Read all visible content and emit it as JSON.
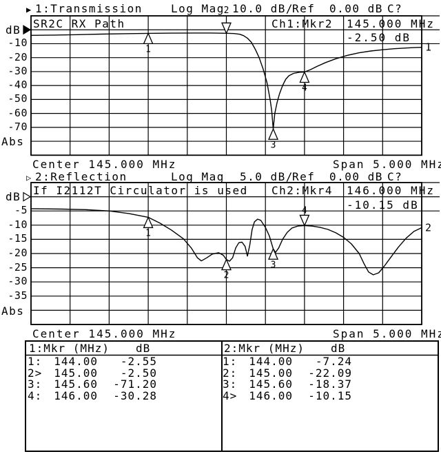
{
  "colors": {
    "fg": "#000000",
    "bg": "#ffffff"
  },
  "chart_data": [
    {
      "type": "line",
      "channel_arrow": "▶",
      "title": "1:Transmission",
      "format": "Log Mag",
      "scale": "10.0 dB/",
      "ref_label": "Ref",
      "ref_value": "0.00 dB",
      "cal_status": "C?",
      "trace_title": "SR2C RX Path",
      "marker_readout_label": "Ch1:Mkr2",
      "marker_readout_freq": "145.000 MHz",
      "marker_readout_value": "-2.50 dB",
      "y_axis_unit": "dB",
      "y_ticks": [
        "-10",
        "-20",
        "-30",
        "-40",
        "-50",
        "-60",
        "-70"
      ],
      "y_bottom_label": "Abs",
      "center_label": "Center 145.000 MHz",
      "span_label": "Span 5.000 MHz",
      "trace_number": "1",
      "ref_pointer_style": "filled",
      "x_range_mhz": [
        142.5,
        147.5
      ],
      "ref_db": 0,
      "db_per_div": 10,
      "grid_divisions": [
        10,
        10
      ],
      "trace_mhz": [
        142.5,
        142.8,
        143.1,
        143.4,
        143.7,
        144.0,
        144.3,
        144.6,
        144.8,
        145.0,
        145.1,
        145.17,
        145.22,
        145.27,
        145.32,
        145.37,
        145.42,
        145.47,
        145.52,
        145.56,
        145.58,
        145.6,
        145.62,
        145.65,
        145.68,
        145.72,
        145.76,
        145.8,
        145.86,
        145.93,
        146.0,
        146.08,
        146.16,
        146.27,
        146.4,
        146.55,
        146.7,
        146.85,
        147.0,
        147.15,
        147.3,
        147.4,
        147.5
      ],
      "trace_db": [
        -4.0,
        -3.8,
        -3.5,
        -3.1,
        -2.8,
        -2.55,
        -2.4,
        -2.3,
        -2.3,
        -2.5,
        -2.7,
        -3.2,
        -4.2,
        -6.0,
        -9.0,
        -14.0,
        -20.0,
        -28.0,
        -38.0,
        -50.0,
        -58.0,
        -71.2,
        -60.0,
        -52.0,
        -46.0,
        -40.0,
        -35.5,
        -33.0,
        -31.3,
        -30.5,
        -30.28,
        -28.5,
        -26.3,
        -23.5,
        -20.8,
        -18.3,
        -16.5,
        -15.2,
        -14.3,
        -13.6,
        -13.1,
        -12.8,
        -12.6
      ],
      "markers": [
        {
          "label": "1",
          "mhz": 144.0,
          "db": -2.55,
          "active": false
        },
        {
          "label": "2",
          "mhz": 145.0,
          "db": -2.5,
          "active": true
        },
        {
          "label": "3",
          "mhz": 145.6,
          "db": -71.2,
          "active": false
        },
        {
          "label": "4",
          "mhz": 146.0,
          "db": -30.28,
          "active": false
        }
      ]
    },
    {
      "type": "line",
      "channel_arrow": "▷",
      "title": "2:Reflection",
      "format": "Log Mag",
      "scale": "5.0 dB/",
      "ref_label": "Ref",
      "ref_value": "0.00 dB",
      "cal_status": "C?",
      "trace_title": "If I2112T Circulator is used",
      "marker_readout_label": "Ch2:Mkr4",
      "marker_readout_freq": "146.000 MHz",
      "marker_readout_value": "-10.15 dB",
      "y_axis_unit": "dB",
      "y_ticks": [
        "-5",
        "-10",
        "-15",
        "-20",
        "-25",
        "-30",
        "-35"
      ],
      "y_bottom_label": "Abs",
      "center_label": "Center 145.000 MHz",
      "span_label": "Span 5.000 MHz",
      "trace_number": "2",
      "ref_pointer_style": "hollow",
      "x_range_mhz": [
        142.5,
        147.5
      ],
      "ref_db": 0,
      "db_per_div": 5,
      "grid_divisions": [
        10,
        10
      ],
      "trace_mhz": [
        142.5,
        142.9,
        143.2,
        143.5,
        143.75,
        144.0,
        144.15,
        144.3,
        144.45,
        144.55,
        144.63,
        144.68,
        144.75,
        144.82,
        144.9,
        144.96,
        145.0,
        145.04,
        145.08,
        145.12,
        145.16,
        145.2,
        145.24,
        145.27,
        145.3,
        145.33,
        145.36,
        145.4,
        145.44,
        145.5,
        145.55,
        145.6,
        145.63,
        145.67,
        145.72,
        145.78,
        145.84,
        145.92,
        146.0,
        146.1,
        146.2,
        146.3,
        146.4,
        146.5,
        146.6,
        146.7,
        146.76,
        146.82,
        146.88,
        146.95,
        147.02,
        147.1,
        147.2,
        147.3,
        147.4,
        147.5
      ],
      "trace_db": [
        -4.2,
        -4.35,
        -4.55,
        -5.0,
        -5.9,
        -7.24,
        -9.3,
        -11.8,
        -14.8,
        -18.0,
        -21.5,
        -22.6,
        -21.5,
        -20.2,
        -19.7,
        -20.6,
        -22.09,
        -22.7,
        -21.5,
        -18.0,
        -16.2,
        -16.0,
        -17.5,
        -20.9,
        -17.0,
        -11.5,
        -8.8,
        -7.9,
        -8.3,
        -10.8,
        -13.8,
        -18.37,
        -19.6,
        -18.0,
        -15.0,
        -12.5,
        -11.0,
        -10.3,
        -10.15,
        -10.35,
        -10.8,
        -11.5,
        -12.7,
        -14.3,
        -16.6,
        -20.0,
        -23.5,
        -26.5,
        -27.5,
        -26.8,
        -24.5,
        -21.5,
        -17.8,
        -14.6,
        -12.2,
        -10.9
      ],
      "markers": [
        {
          "label": "1",
          "mhz": 144.0,
          "db": -7.24,
          "active": false
        },
        {
          "label": "2",
          "mhz": 145.0,
          "db": -22.09,
          "active": false
        },
        {
          "label": "3",
          "mhz": 145.6,
          "db": -18.37,
          "active": false
        },
        {
          "label": "4",
          "mhz": 146.0,
          "db": -10.15,
          "active": true
        }
      ]
    }
  ],
  "tables": [
    {
      "title_col": "1:Mkr (MHz)",
      "value_col": "dB",
      "rows": [
        {
          "label": "1:",
          "freq": "144.00",
          "value": "-2.55"
        },
        {
          "label": "2>",
          "freq": "145.00",
          "value": "-2.50"
        },
        {
          "label": "3:",
          "freq": "145.60",
          "value": "-71.20"
        },
        {
          "label": "4:",
          "freq": "146.00",
          "value": "-30.28"
        }
      ]
    },
    {
      "title_col": "2:Mkr (MHz)",
      "value_col": "dB",
      "rows": [
        {
          "label": "1:",
          "freq": "144.00",
          "value": "-7.24"
        },
        {
          "label": "2:",
          "freq": "145.00",
          "value": "-22.09"
        },
        {
          "label": "3:",
          "freq": "145.60",
          "value": "-18.37"
        },
        {
          "label": "4>",
          "freq": "146.00",
          "value": "-10.15"
        }
      ]
    }
  ]
}
